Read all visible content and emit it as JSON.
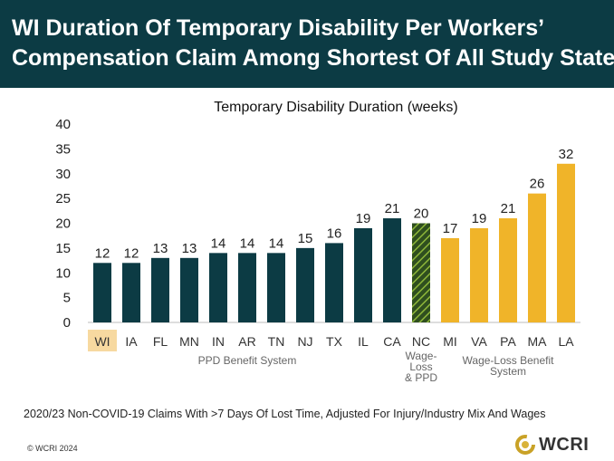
{
  "banner": {
    "title_line1": "WI Duration Of Temporary Disability Per Workers’",
    "title_line2": "Compensation Claim Among Shortest Of All Study States"
  },
  "colors": {
    "banner_bg": "#0c3b44",
    "ppd_bar": "#0c3b44",
    "hybrid_bar": "#6b8e23",
    "wage_loss_bar": "#f0b429",
    "highlight": "#f7d9a0"
  },
  "chart_data": {
    "type": "bar",
    "title": "Temporary Disability Duration (weeks)",
    "ylim": [
      0,
      40
    ],
    "yticks": [
      0,
      5,
      10,
      15,
      20,
      25,
      30,
      35,
      40
    ],
    "grid": false,
    "categories": [
      "WI",
      "IA",
      "FL",
      "MN",
      "IN",
      "AR",
      "TN",
      "NJ",
      "TX",
      "IL",
      "CA",
      "NC",
      "MI",
      "VA",
      "PA",
      "MA",
      "LA"
    ],
    "values": [
      12,
      12,
      13,
      13,
      14,
      14,
      14,
      15,
      16,
      19,
      21,
      20,
      17,
      19,
      21,
      26,
      32
    ],
    "data_labels": [
      "12",
      "12",
      "13",
      "13",
      "14",
      "14",
      "14",
      "15",
      "16",
      "19",
      "21",
      "20",
      "17",
      "19",
      "21",
      "26",
      "32"
    ],
    "bar_groups": [
      "ppd",
      "ppd",
      "ppd",
      "ppd",
      "ppd",
      "ppd",
      "ppd",
      "ppd",
      "ppd",
      "ppd",
      "ppd",
      "hybrid",
      "wageloss",
      "wageloss",
      "wageloss",
      "wageloss",
      "wageloss"
    ],
    "highlighted_category": "WI",
    "group_labels": {
      "ppd": [
        "PPD Benefit System"
      ],
      "hybrid": [
        "Wage-",
        "Loss",
        "& PPD"
      ],
      "wageloss": [
        "Wage-Loss Benefit",
        "System"
      ]
    }
  },
  "footnote": "2020/23 Non-COVID-19 Claims With >7 Days Of Lost Time, Adjusted For Injury/Industry Mix And Wages",
  "copyright": "© WCRI 2024",
  "logo": {
    "text": "WCRI",
    "icon": "wcri-ring-icon"
  }
}
